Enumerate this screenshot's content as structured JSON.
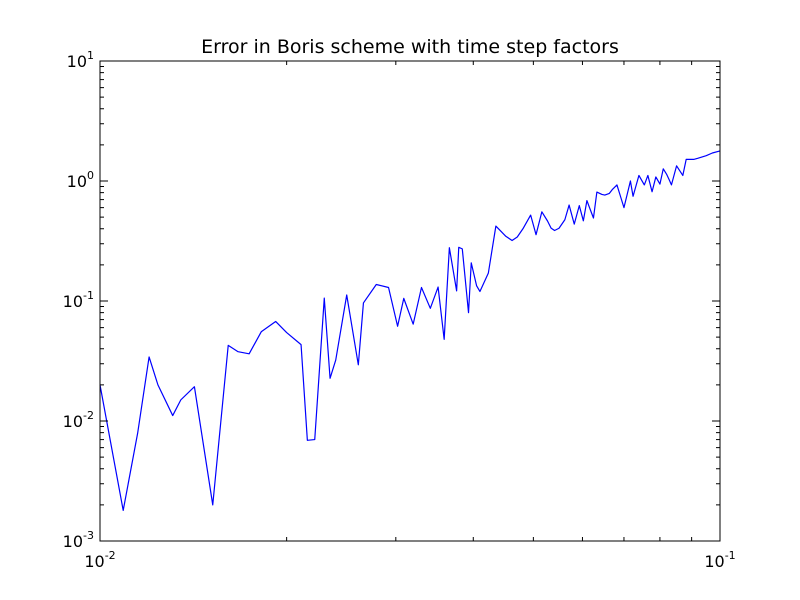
{
  "chart_data": {
    "type": "line",
    "title": "Error in Boris scheme with time step factors",
    "xlabel": "",
    "ylabel": "",
    "xscale": "log",
    "yscale": "log",
    "xlim": [
      0.01,
      0.1
    ],
    "ylim": [
      0.001,
      10
    ],
    "grid": false,
    "x_ticks": [
      {
        "value": 0.01,
        "base": "10",
        "exp": "-2"
      },
      {
        "value": 0.1,
        "base": "10",
        "exp": "-1"
      }
    ],
    "y_ticks": [
      {
        "value": 10,
        "base": "10",
        "exp": "1"
      },
      {
        "value": 1,
        "base": "10",
        "exp": "0"
      },
      {
        "value": 0.1,
        "base": "10",
        "exp": "-1"
      },
      {
        "value": 0.01,
        "base": "10",
        "exp": "-2"
      },
      {
        "value": 0.001,
        "base": "10",
        "exp": "-3"
      }
    ],
    "series": [
      {
        "color": "#0000ff",
        "x": [
          0.01,
          0.0109,
          0.0115,
          0.012,
          0.0124,
          0.0131,
          0.0135,
          0.0142,
          0.0152,
          0.0161,
          0.0167,
          0.0174,
          0.0182,
          0.0192,
          0.02,
          0.0211,
          0.0216,
          0.0222,
          0.023,
          0.0235,
          0.024,
          0.025,
          0.0261,
          0.0266,
          0.0279,
          0.0292,
          0.0302,
          0.0309,
          0.032,
          0.033,
          0.0341,
          0.0351,
          0.0359,
          0.0366,
          0.0376,
          0.0379,
          0.0384,
          0.0393,
          0.0397,
          0.0405,
          0.041,
          0.0423,
          0.0435,
          0.0451,
          0.0462,
          0.0471,
          0.0481,
          0.0495,
          0.0505,
          0.0516,
          0.0527,
          0.0534,
          0.0541,
          0.055,
          0.0562,
          0.0571,
          0.0582,
          0.0593,
          0.0602,
          0.061,
          0.0618,
          0.0625,
          0.0633,
          0.0645,
          0.0652,
          0.0663,
          0.067,
          0.0682,
          0.07,
          0.0717,
          0.0724,
          0.074,
          0.0755,
          0.0765,
          0.0777,
          0.0788,
          0.08,
          0.081,
          0.082,
          0.0828,
          0.0835,
          0.0851,
          0.086,
          0.0871,
          0.0882,
          0.0888,
          0.0897,
          0.0907,
          0.0922,
          0.095,
          0.0972,
          0.1
        ],
        "y": [
          0.02,
          0.0018,
          0.0079,
          0.0342,
          0.02,
          0.0111,
          0.015,
          0.0193,
          0.002,
          0.0427,
          0.0378,
          0.0363,
          0.0554,
          0.0675,
          0.0546,
          0.0433,
          0.0069,
          0.007,
          0.1056,
          0.0227,
          0.0322,
          0.1122,
          0.0294,
          0.0963,
          0.1373,
          0.1296,
          0.0616,
          0.1052,
          0.0641,
          0.1296,
          0.0869,
          0.1307,
          0.0479,
          0.2782,
          0.1215,
          0.2803,
          0.2718,
          0.0799,
          0.2079,
          0.1338,
          0.1201,
          0.1706,
          0.4209,
          0.3475,
          0.3193,
          0.3416,
          0.3999,
          0.5198,
          0.357,
          0.5533,
          0.4642,
          0.4047,
          0.3868,
          0.4037,
          0.4752,
          0.6303,
          0.437,
          0.6237,
          0.4657,
          0.6866,
          0.573,
          0.4915,
          0.8082,
          0.7724,
          0.7629,
          0.7881,
          0.8459,
          0.9279,
          0.6,
          1.0,
          0.7457,
          1.1122,
          0.9279,
          1.1122,
          0.8135,
          1.0809,
          0.9428,
          1.262,
          1.14,
          1.0233,
          0.9279,
          1.3373,
          1.2305,
          1.1122,
          1.5133,
          1.5133,
          1.5133,
          1.5133,
          1.5486,
          1.624,
          1.7111,
          1.7788
        ]
      }
    ]
  }
}
